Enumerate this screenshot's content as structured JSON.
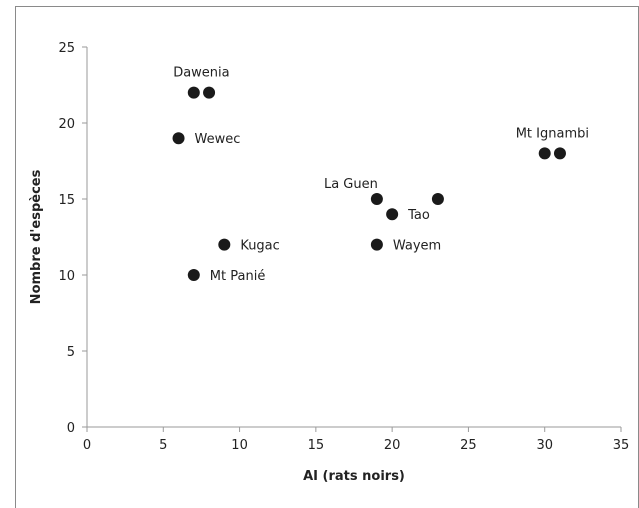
{
  "chart_data": {
    "type": "scatter",
    "xlabel": "AI (rats noirs)",
    "ylabel": "Nombre d'espèces",
    "xlim": [
      0,
      35
    ],
    "ylim": [
      0,
      25
    ],
    "xticks": [
      0,
      5,
      10,
      15,
      20,
      25,
      30,
      35
    ],
    "yticks": [
      0,
      5,
      10,
      15,
      20,
      25
    ],
    "grid": false,
    "marker_color": "#1a1a1a",
    "points": [
      {
        "x": 7,
        "y": 22
      },
      {
        "x": 8,
        "y": 22
      },
      {
        "x": 6,
        "y": 19
      },
      {
        "x": 9,
        "y": 12
      },
      {
        "x": 7,
        "y": 10
      },
      {
        "x": 19,
        "y": 15
      },
      {
        "x": 20,
        "y": 14
      },
      {
        "x": 23,
        "y": 15
      },
      {
        "x": 19,
        "y": 12
      },
      {
        "x": 30,
        "y": 18
      },
      {
        "x": 31,
        "y": 18
      }
    ],
    "annotations": [
      {
        "text": "Dawenia",
        "x": 7.5,
        "y": 22,
        "anchor": "above"
      },
      {
        "text": "Wewec",
        "x": 6,
        "y": 19,
        "anchor": "right"
      },
      {
        "text": "Kugac",
        "x": 9,
        "y": 12,
        "anchor": "right"
      },
      {
        "text": "Mt Panié",
        "x": 7,
        "y": 10,
        "anchor": "right"
      },
      {
        "text": "La Guen",
        "x": 19,
        "y": 15,
        "anchor": "above-left"
      },
      {
        "text": "Tao",
        "x": 20,
        "y": 14,
        "anchor": "right"
      },
      {
        "text": "Wayem",
        "x": 19,
        "y": 12,
        "anchor": "right"
      },
      {
        "text": "Mt Ignambi",
        "x": 30.5,
        "y": 18,
        "anchor": "above"
      }
    ]
  }
}
